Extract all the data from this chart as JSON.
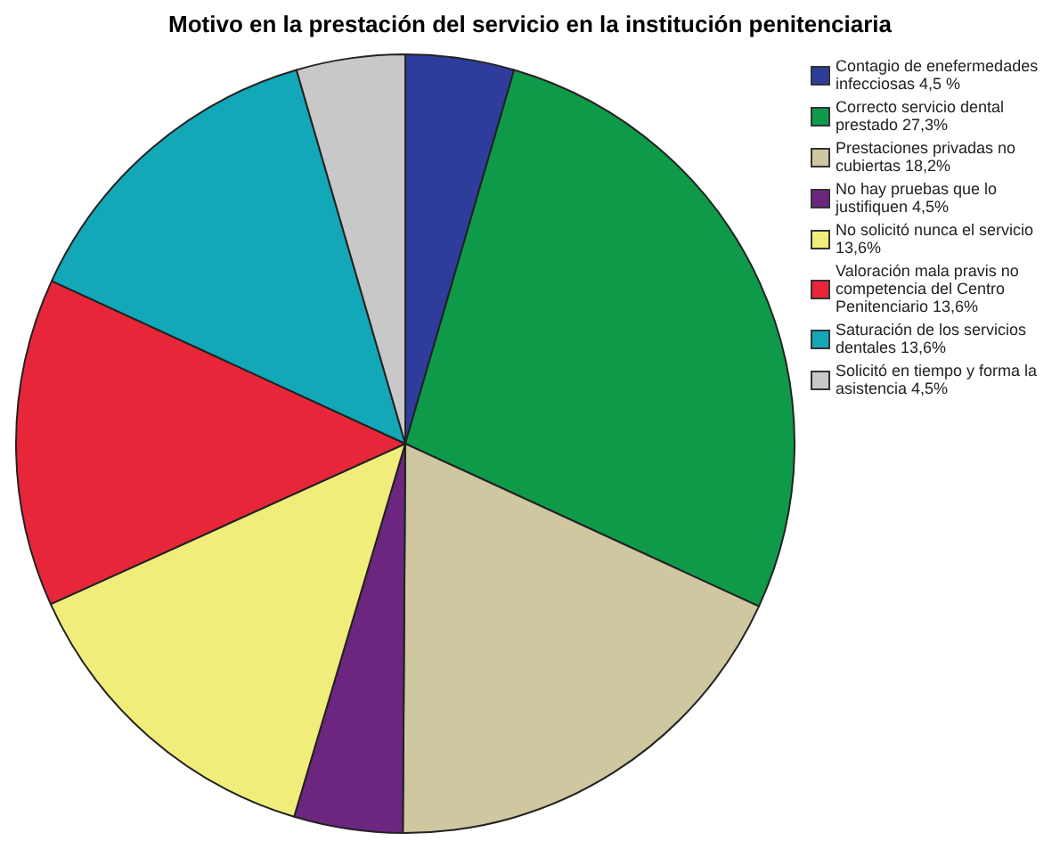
{
  "chart_data": {
    "type": "pie",
    "title": "Motivo en la prestación del servicio en la institución penitenciaria",
    "categories": [
      "Contagio de enefermedades infecciosas 4,5 %",
      "Correcto servicio dental prestado 27,3%",
      "Prestaciones privadas no cubiertas 18,2%",
      "No hay pruebas que lo justifiquen 4,5%",
      "No solicitó nunca el servicio 13,6%",
      "Valoración mala pravis no competencia del Centro Penitenciario 13,6%",
      "Saturación de los servicios dentales 13,6%",
      "Solicitó en tiempo y forma la asistencia 4,5%"
    ],
    "values": [
      4.5,
      27.3,
      18.2,
      4.5,
      13.6,
      13.6,
      13.6,
      4.5
    ],
    "colors": [
      "#2e3d9c",
      "#0f9a4a",
      "#cfc7a0",
      "#6c2680",
      "#f0ed7a",
      "#e8263a",
      "#13a8b8",
      "#c8c8c8"
    ],
    "legend": "right"
  }
}
